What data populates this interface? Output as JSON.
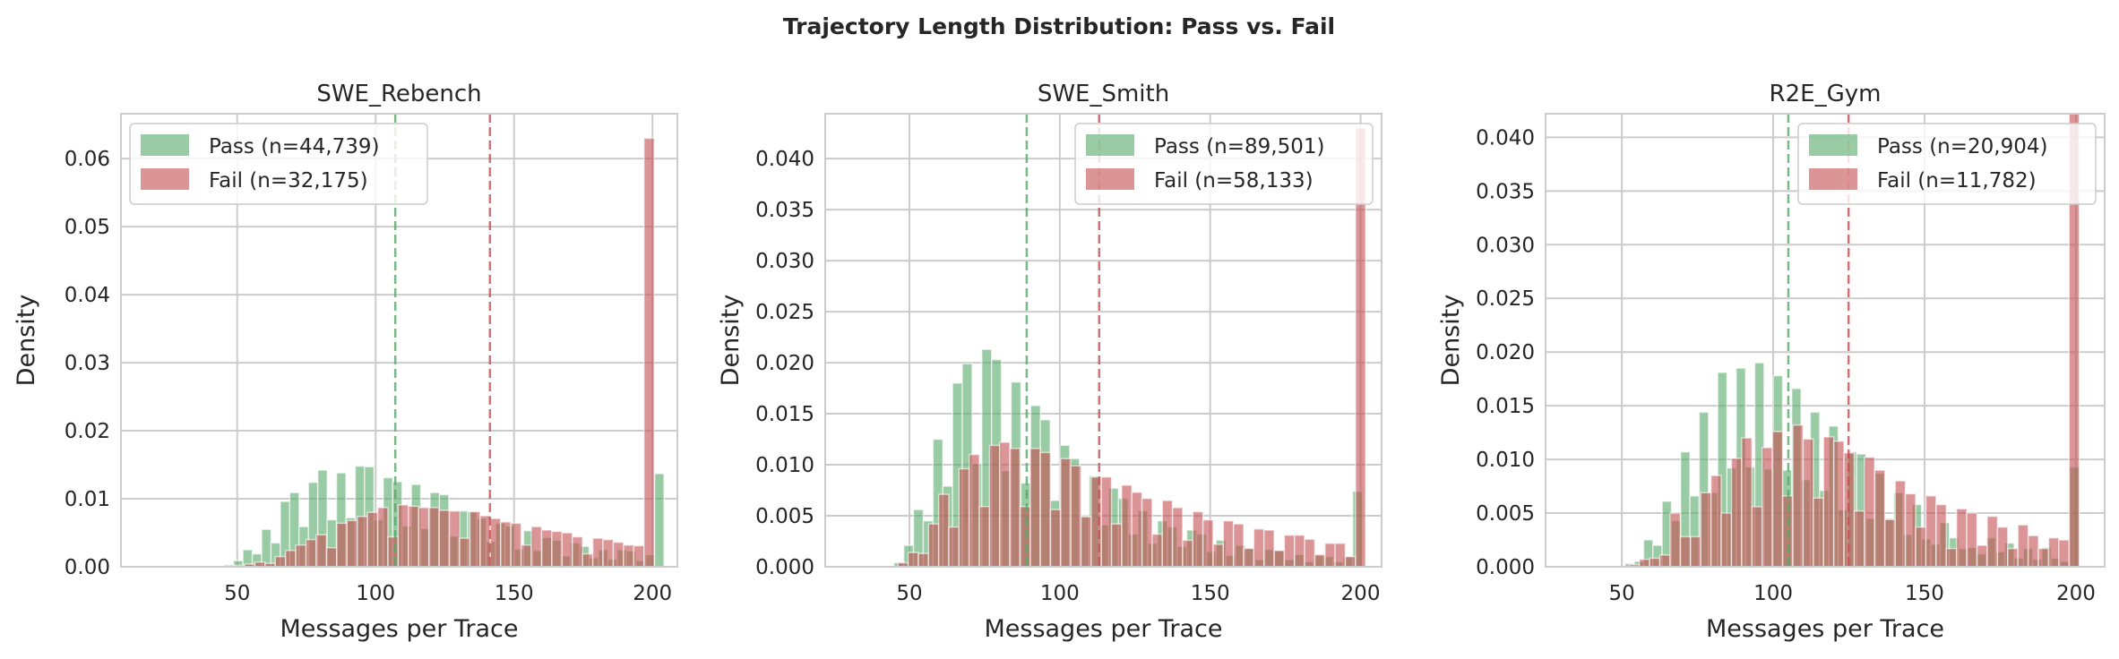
{
  "title": "Trajectory Length Distribution: Pass vs. Fail",
  "colors": {
    "pass": "#55a868",
    "fail": "#c44e52",
    "grid": "#cccccc"
  },
  "chart_data": [
    {
      "type": "bar",
      "title": "SWE_Rebench",
      "xlabel": "Messages per Trace",
      "ylabel": "Density",
      "xlim": [
        8,
        209
      ],
      "ylim": [
        0,
        0.0666
      ],
      "xticks": [
        50,
        100,
        150,
        200
      ],
      "yticks": [
        "0.00",
        "0.01",
        "0.02",
        "0.03",
        "0.04",
        "0.05",
        "0.06"
      ],
      "grid": true,
      "legend": "upper left",
      "series": [
        {
          "name": "Pass (n=44,739)",
          "color": "#55a868",
          "first_bin_center": 47,
          "bin_width": 3.38,
          "mean": 107.1,
          "values": [
            0.0003,
            0.0009,
            0.0025,
            0.0019,
            0.0055,
            0.0035,
            0.0096,
            0.0109,
            0.0059,
            0.0124,
            0.0142,
            0.0069,
            0.0138,
            0.0072,
            0.0148,
            0.0147,
            0.0069,
            0.0131,
            0.0125,
            0.006,
            0.0121,
            0.0056,
            0.0109,
            0.0106,
            0.0045,
            0.0082,
            0.0081,
            0.0071,
            0.0037,
            0.0064,
            0.006,
            0.0026,
            0.0053,
            0.0024,
            0.0043,
            0.0039,
            0.0016,
            0.0035,
            0.003,
            0.0013,
            0.0025,
            0.0011,
            0.0025,
            0.0023,
            0.0009,
            0.0018,
            0.0137
          ]
        },
        {
          "name": "Fail (n=32,175)",
          "color": "#c44e52",
          "first_bin_center": 47.1,
          "bin_width": 3.7,
          "mean": 141.3,
          "values": [
            0.0002,
            0.0002,
            0.0004,
            0.0007,
            0.0005,
            0.0015,
            0.0024,
            0.0032,
            0.004,
            0.0047,
            0.0028,
            0.0064,
            0.0068,
            0.0074,
            0.008,
            0.0087,
            0.0044,
            0.0091,
            0.0089,
            0.0087,
            0.0087,
            0.0083,
            0.0082,
            0.0042,
            0.0081,
            0.0075,
            0.0071,
            0.0066,
            0.0064,
            0.0032,
            0.0059,
            0.0054,
            0.0052,
            0.005,
            0.0044,
            0.0019,
            0.0042,
            0.004,
            0.0036,
            0.0032,
            0.0031,
            0.063
          ]
        }
      ]
    },
    {
      "type": "bar",
      "title": "SWE_Smith",
      "xlabel": "Messages per Trace",
      "ylabel": "Density",
      "xlim": [
        22,
        207
      ],
      "ylim": [
        0,
        0.0444
      ],
      "xticks": [
        50,
        100,
        150,
        200
      ],
      "yticks": [
        "0.000",
        "0.005",
        "0.010",
        "0.015",
        "0.020",
        "0.025",
        "0.030",
        "0.035",
        "0.040"
      ],
      "grid": true,
      "legend": "upper right",
      "series": [
        {
          "name": "Pass (n=89,501)",
          "color": "#55a868",
          "first_bin_center": 46.5,
          "bin_width": 3.245,
          "mean": 89.0,
          "values": [
            0.0004,
            0.0021,
            0.0056,
            0.0045,
            0.0125,
            0.0079,
            0.018,
            0.0199,
            0.0101,
            0.0213,
            0.0203,
            0.0094,
            0.0181,
            0.0082,
            0.0158,
            0.0144,
            0.0065,
            0.0119,
            0.0106,
            0.005,
            0.0089,
            0.0041,
            0.0077,
            0.0067,
            0.0032,
            0.0055,
            0.0023,
            0.0045,
            0.0039,
            0.002,
            0.0036,
            0.0032,
            0.0015,
            0.0026,
            0.0011,
            0.0021,
            0.0018,
            0.0007,
            0.0017,
            0.0016,
            0.0007,
            0.0012,
            0.0005,
            0.0011,
            0.001,
            0.0005,
            0.001,
            0.0074
          ]
        },
        {
          "name": "Fail (n=58,133)",
          "color": "#c44e52",
          "first_bin_center": 47.9,
          "bin_width": 3.38,
          "mean": 113.1,
          "values": [
            0.0004,
            0.0014,
            0.0013,
            0.0042,
            0.0071,
            0.0039,
            0.0096,
            0.011,
            0.0059,
            0.0119,
            0.0122,
            0.0116,
            0.0059,
            0.0116,
            0.0112,
            0.0056,
            0.0106,
            0.0099,
            0.0049,
            0.0088,
            0.0088,
            0.0042,
            0.008,
            0.0073,
            0.0067,
            0.0032,
            0.0065,
            0.0058,
            0.0026,
            0.0054,
            0.0046,
            0.0022,
            0.0045,
            0.0042,
            0.0018,
            0.0037,
            0.0036,
            0.0016,
            0.0031,
            0.0031,
            0.0027,
            0.0012,
            0.0023,
            0.0023,
            0.001,
            0.043
          ]
        }
      ]
    },
    {
      "type": "bar",
      "title": "R2E_Gym",
      "xlabel": "Messages per Trace",
      "ylabel": "Density",
      "xlim": [
        24.8,
        209.5
      ],
      "ylim": [
        0,
        0.0422
      ],
      "xticks": [
        50,
        100,
        150,
        200
      ],
      "yticks": [
        "0.000",
        "0.005",
        "0.010",
        "0.015",
        "0.020",
        "0.025",
        "0.030",
        "0.035",
        "0.040"
      ],
      "grid": true,
      "legend": "upper right",
      "series": [
        {
          "name": "Pass (n=20,904)",
          "color": "#55a868",
          "first_bin_center": 52.6,
          "bin_width": 3.06,
          "mean": 105.0,
          "values": [
            0.0003,
            0.0005,
            0.0025,
            0.002,
            0.0061,
            0.0043,
            0.0107,
            0.0066,
            0.0144,
            0.0069,
            0.0181,
            0.0092,
            0.0185,
            0.0093,
            0.019,
            0.0091,
            0.0178,
            0.009,
            0.0166,
            0.0081,
            0.0144,
            0.0071,
            0.0131,
            0.0053,
            0.0107,
            0.0105,
            0.0045,
            0.0087,
            0.0045,
            0.0069,
            0.003,
            0.0058,
            0.0026,
            0.0021,
            0.0041,
            0.0027,
            0.0017,
            0.0018,
            0.0012,
            0.0027,
            0.0014,
            0.0022,
            0.0008,
            0.0017,
            0.0007,
            0.0018,
            0.0008,
            0.0005,
            0.0093
          ]
        },
        {
          "name": "Fail (n=11,782)",
          "color": "#c44e52",
          "first_bin_center": 54.1,
          "bin_width": 3.38,
          "mean": 124.9,
          "values": [
            0.0002,
            0.0007,
            0.0008,
            0.0011,
            0.005,
            0.0028,
            0.0028,
            0.0069,
            0.0085,
            0.005,
            0.0101,
            0.012,
            0.0056,
            0.0111,
            0.0126,
            0.0066,
            0.0132,
            0.0119,
            0.0064,
            0.0121,
            0.0117,
            0.0106,
            0.0052,
            0.0102,
            0.009,
            0.0044,
            0.008,
            0.0068,
            0.0037,
            0.0066,
            0.0058,
            0.0017,
            0.0054,
            0.005,
            0.002,
            0.0047,
            0.0037,
            0.0017,
            0.0039,
            0.0029,
            0.0017,
            0.0027,
            0.0025,
            0.043
          ]
        }
      ]
    }
  ]
}
